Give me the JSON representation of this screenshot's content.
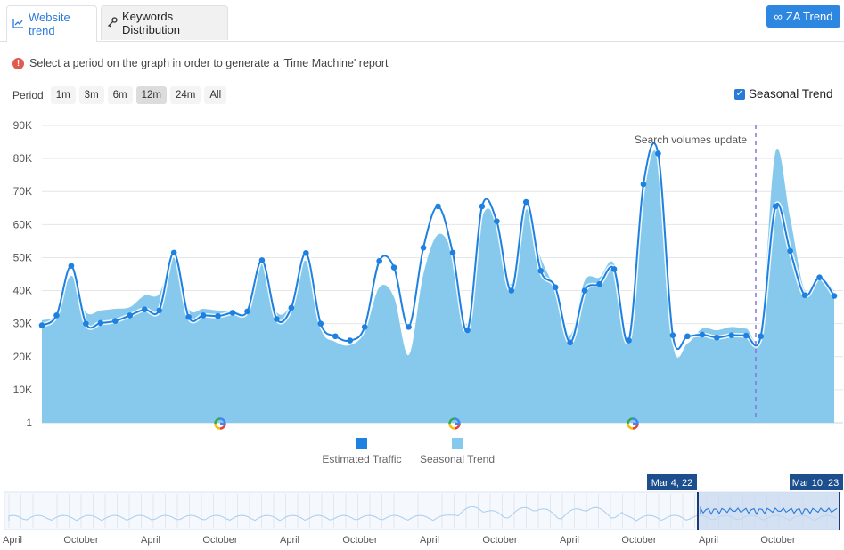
{
  "tabs": [
    {
      "label": "Website trend",
      "icon": "line-chart-icon",
      "active": true
    },
    {
      "label": "Keywords Distribution",
      "icon": "key-icon",
      "active": false
    }
  ],
  "za_button": {
    "label": "ZA Trend",
    "icon": "infinity-icon"
  },
  "info": {
    "text": "Select a period on the graph in order to generate a 'Time Machine' report"
  },
  "period": {
    "label": "Period",
    "options": [
      "1m",
      "3m",
      "6m",
      "12m",
      "24m",
      "All"
    ],
    "selected": "12m"
  },
  "seasonal_toggle": {
    "label": "Seasonal Trend",
    "checked": true
  },
  "colors": {
    "traffic": "#1e80e0",
    "seasonal": "#87c9ec",
    "accent": "#2a7ad8",
    "update_line": "#8a73d9"
  },
  "annotation": {
    "text": "Search volumes update"
  },
  "legend": [
    "Estimated Traffic",
    "Seasonal Trend"
  ],
  "navigator": {
    "start_label": "Mar 4, 22",
    "end_label": "Mar 10, 23",
    "ticks": [
      "April",
      "October",
      "April",
      "October",
      "April",
      "October",
      "April",
      "October",
      "April",
      "October",
      "April",
      "October"
    ]
  },
  "chart_data": {
    "type": "area",
    "y_ticks": [
      "90K",
      "80K",
      "70K",
      "60K",
      "50K",
      "40K",
      "30K",
      "20K",
      "10K",
      "1"
    ],
    "ylim": [
      0,
      90000
    ],
    "google_update_markers": 3,
    "series": [
      {
        "name": "Estimated Traffic",
        "values": [
          29500,
          32500,
          47500,
          30000,
          30200,
          30800,
          32500,
          34300,
          34000,
          51500,
          32000,
          32500,
          32300,
          33300,
          33700,
          49200,
          31400,
          34800,
          51400,
          30000,
          26200,
          24900,
          29000,
          49000,
          47000,
          29000,
          53000,
          65500,
          51500,
          28000,
          65500,
          61000,
          40000,
          66800,
          46000,
          41000,
          24300,
          40000,
          42000,
          46500,
          24900,
          72200,
          81500,
          26500,
          26200,
          26700,
          25800,
          26500,
          26400,
          26200,
          65500,
          52000,
          38600,
          44000,
          38400
        ]
      },
      {
        "name": "Seasonal Trend",
        "values": [
          31000,
          33000,
          44500,
          33500,
          34000,
          34500,
          35000,
          38500,
          39000,
          50000,
          34500,
          34500,
          34000,
          34000,
          34000,
          48000,
          33500,
          36000,
          49000,
          28500,
          24500,
          23500,
          27500,
          41000,
          38000,
          20500,
          45000,
          57000,
          51000,
          30000,
          62000,
          61000,
          42000,
          64500,
          50000,
          40000,
          26500,
          43000,
          44000,
          48000,
          25000,
          68000,
          80000,
          24000,
          24000,
          28500,
          28000,
          29000,
          28500,
          28500,
          82000,
          62000,
          40000,
          44000,
          40000
        ]
      }
    ]
  }
}
